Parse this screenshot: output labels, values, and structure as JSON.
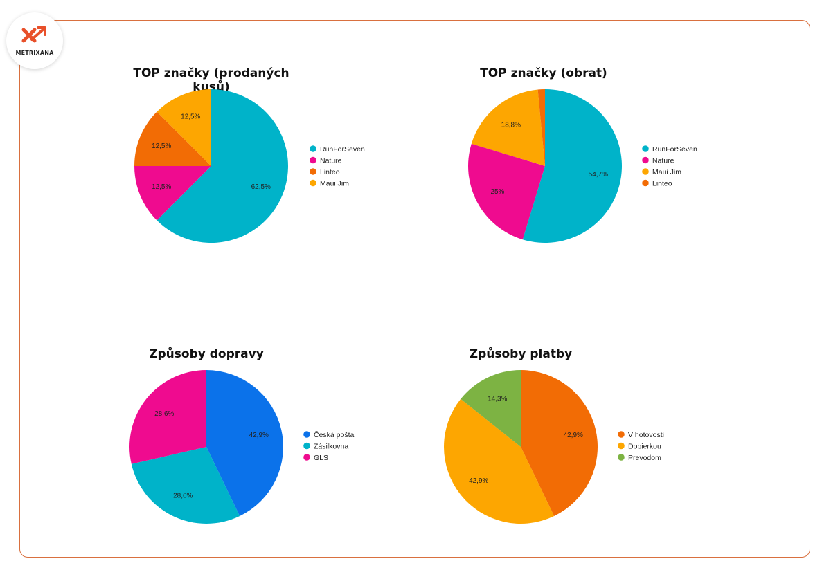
{
  "brand": {
    "logo_text": "METRIXANA",
    "accent": "#e8502a"
  },
  "chart_data": [
    {
      "type": "pie",
      "title": "TOP značky (prodaných kusů)",
      "labels": [
        "RunForSeven",
        "Nature",
        "Linteo",
        "Maui Jim"
      ],
      "values": [
        62.5,
        12.5,
        12.5,
        12.5
      ],
      "display_labels": [
        "62,5%",
        "12,5%",
        "12,5%",
        "12,5%"
      ],
      "colors": [
        "#00b3c9",
        "#ef0b8f",
        "#f26c05",
        "#fda601"
      ],
      "legend_position": "right"
    },
    {
      "type": "pie",
      "title": "TOP značky (obrat)",
      "labels": [
        "RunForSeven",
        "Nature",
        "Maui Jim",
        "Linteo"
      ],
      "values": [
        54.7,
        25,
        18.8,
        1.5
      ],
      "display_labels": [
        "54,7%",
        "25%",
        "18,8%",
        ""
      ],
      "colors": [
        "#00b3c9",
        "#ef0b8f",
        "#fda601",
        "#f26c05"
      ],
      "legend_position": "right"
    },
    {
      "type": "pie",
      "title": "Způsoby dopravy",
      "labels": [
        "Česká pošta",
        "Zásilkovna",
        "GLS"
      ],
      "values": [
        42.9,
        28.6,
        28.6
      ],
      "display_labels": [
        "42,9%",
        "28,6%",
        "28,6%"
      ],
      "colors": [
        "#0b72ea",
        "#00b3c9",
        "#ef0b8f"
      ],
      "legend_position": "right"
    },
    {
      "type": "pie",
      "title": "Způsoby platby",
      "labels": [
        "V hotovosti",
        "Dobierkou",
        "Prevodom"
      ],
      "values": [
        42.9,
        42.9,
        14.3
      ],
      "display_labels": [
        "42,9%",
        "42,9%",
        "14,3%"
      ],
      "colors": [
        "#f26c05",
        "#fda601",
        "#7db343"
      ],
      "legend_position": "right"
    }
  ]
}
